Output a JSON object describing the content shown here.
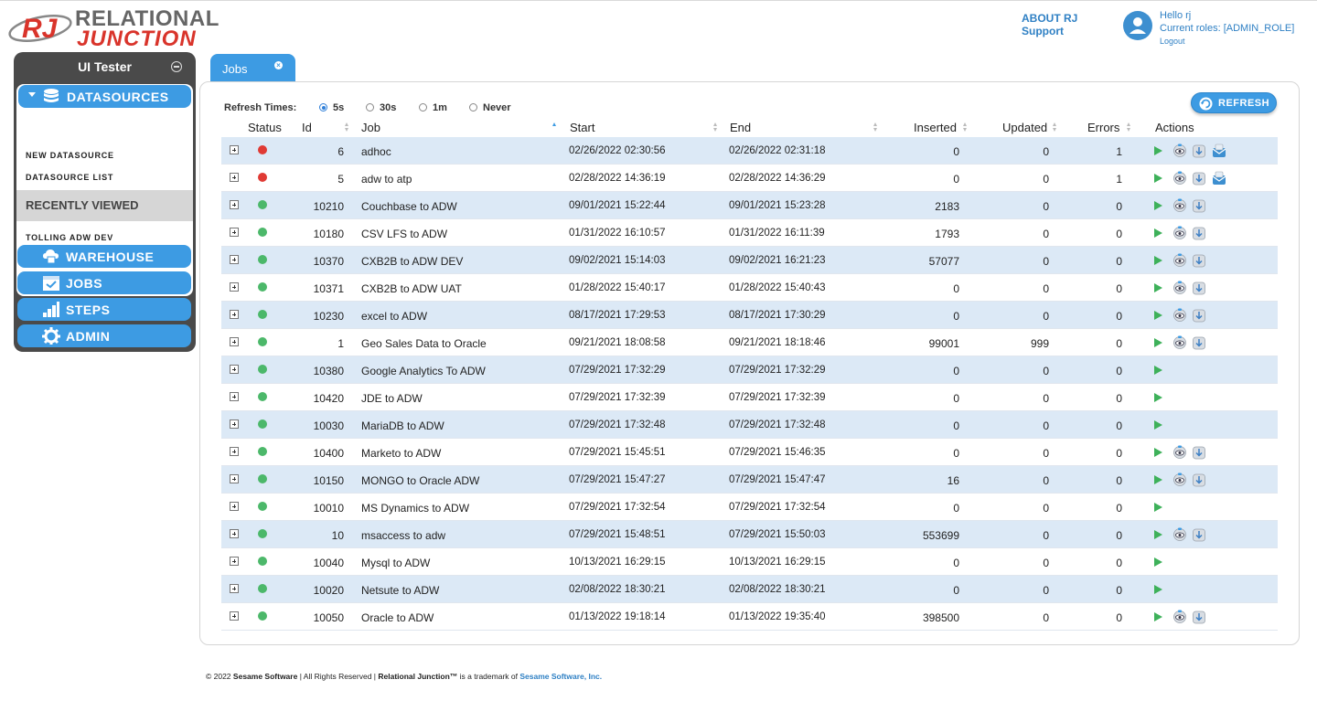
{
  "header": {
    "logo_top": "RELATIONAL",
    "logo_bottom": "JUNCTION",
    "logo_mark": "RJ",
    "about": "ABOUT RJ",
    "support": "Support",
    "greeting": "Hello rj",
    "roles": "Current roles: [ADMIN_ROLE]",
    "logout": "Logout"
  },
  "sidebar": {
    "title": "UI Tester",
    "section": "DATASOURCES",
    "links": [
      "NEW DATASOURCE",
      "DATASOURCE LIST"
    ],
    "recently_viewed": "RECENTLY VIEWED",
    "recent_item": "TOLLING ADW DEV",
    "nav": [
      "WAREHOUSE",
      "JOBS",
      "STEPS",
      "ADMIN"
    ]
  },
  "tab": {
    "label": "Jobs"
  },
  "toolbar": {
    "refresh_times_label": "Refresh Times:",
    "options": [
      "5s",
      "30s",
      "1m",
      "Never"
    ],
    "selected": "5s",
    "refresh_button": "REFRESH"
  },
  "table": {
    "columns": [
      "Status",
      "Id",
      "Job",
      "Start",
      "End",
      "Inserted",
      "Updated",
      "Errors",
      "Actions"
    ],
    "rows": [
      {
        "status": "error",
        "id": "6",
        "job": "adhoc",
        "start": "02/26/2022 02:30:56",
        "end": "02/26/2022 02:31:18",
        "inserted": "0",
        "updated": "0",
        "errors": "1",
        "actions": [
          "play",
          "view",
          "download",
          "email"
        ]
      },
      {
        "status": "error",
        "id": "5",
        "job": "adw to atp",
        "start": "02/28/2022 14:36:19",
        "end": "02/28/2022 14:36:29",
        "inserted": "0",
        "updated": "0",
        "errors": "1",
        "actions": [
          "play",
          "view",
          "download",
          "email"
        ]
      },
      {
        "status": "ok",
        "id": "10210",
        "job": "Couchbase to ADW",
        "start": "09/01/2021 15:22:44",
        "end": "09/01/2021 15:23:28",
        "inserted": "2183",
        "updated": "0",
        "errors": "0",
        "actions": [
          "play",
          "view",
          "download"
        ]
      },
      {
        "status": "ok",
        "id": "10180",
        "job": "CSV LFS to ADW",
        "start": "01/31/2022 16:10:57",
        "end": "01/31/2022 16:11:39",
        "inserted": "1793",
        "updated": "0",
        "errors": "0",
        "actions": [
          "play",
          "view",
          "download"
        ]
      },
      {
        "status": "ok",
        "id": "10370",
        "job": "CXB2B to ADW DEV",
        "start": "09/02/2021 15:14:03",
        "end": "09/02/2021 16:21:23",
        "inserted": "57077",
        "updated": "0",
        "errors": "0",
        "actions": [
          "play",
          "view",
          "download"
        ]
      },
      {
        "status": "ok",
        "id": "10371",
        "job": "CXB2B to ADW UAT",
        "start": "01/28/2022 15:40:17",
        "end": "01/28/2022 15:40:43",
        "inserted": "0",
        "updated": "0",
        "errors": "0",
        "actions": [
          "play",
          "view",
          "download"
        ]
      },
      {
        "status": "ok",
        "id": "10230",
        "job": "excel to ADW",
        "start": "08/17/2021 17:29:53",
        "end": "08/17/2021 17:30:29",
        "inserted": "0",
        "updated": "0",
        "errors": "0",
        "actions": [
          "play",
          "view",
          "download"
        ]
      },
      {
        "status": "ok",
        "id": "1",
        "job": "Geo Sales Data to Oracle",
        "start": "09/21/2021 18:08:58",
        "end": "09/21/2021 18:18:46",
        "inserted": "99001",
        "updated": "999",
        "errors": "0",
        "actions": [
          "play",
          "view",
          "download"
        ]
      },
      {
        "status": "ok",
        "id": "10380",
        "job": "Google Analytics To ADW",
        "start": "07/29/2021 17:32:29",
        "end": "07/29/2021 17:32:29",
        "inserted": "0",
        "updated": "0",
        "errors": "0",
        "actions": [
          "play"
        ]
      },
      {
        "status": "ok",
        "id": "10420",
        "job": "JDE to ADW",
        "start": "07/29/2021 17:32:39",
        "end": "07/29/2021 17:32:39",
        "inserted": "0",
        "updated": "0",
        "errors": "0",
        "actions": [
          "play"
        ]
      },
      {
        "status": "ok",
        "id": "10030",
        "job": "MariaDB to ADW",
        "start": "07/29/2021 17:32:48",
        "end": "07/29/2021 17:32:48",
        "inserted": "0",
        "updated": "0",
        "errors": "0",
        "actions": [
          "play"
        ]
      },
      {
        "status": "ok",
        "id": "10400",
        "job": "Marketo to ADW",
        "start": "07/29/2021 15:45:51",
        "end": "07/29/2021 15:46:35",
        "inserted": "0",
        "updated": "0",
        "errors": "0",
        "actions": [
          "play",
          "view",
          "download"
        ]
      },
      {
        "status": "ok",
        "id": "10150",
        "job": "MONGO to Oracle ADW",
        "start": "07/29/2021 15:47:27",
        "end": "07/29/2021 15:47:47",
        "inserted": "16",
        "updated": "0",
        "errors": "0",
        "actions": [
          "play",
          "view",
          "download"
        ]
      },
      {
        "status": "ok",
        "id": "10010",
        "job": "MS Dynamics to ADW",
        "start": "07/29/2021 17:32:54",
        "end": "07/29/2021 17:32:54",
        "inserted": "0",
        "updated": "0",
        "errors": "0",
        "actions": [
          "play"
        ]
      },
      {
        "status": "ok",
        "id": "10",
        "job": "msaccess to adw",
        "start": "07/29/2021 15:48:51",
        "end": "07/29/2021 15:50:03",
        "inserted": "553699",
        "updated": "0",
        "errors": "0",
        "actions": [
          "play",
          "view",
          "download"
        ]
      },
      {
        "status": "ok",
        "id": "10040",
        "job": "Mysql to ADW",
        "start": "10/13/2021 16:29:15",
        "end": "10/13/2021 16:29:15",
        "inserted": "0",
        "updated": "0",
        "errors": "0",
        "actions": [
          "play"
        ]
      },
      {
        "status": "ok",
        "id": "10020",
        "job": "Netsute to ADW",
        "start": "02/08/2022 18:30:21",
        "end": "02/08/2022 18:30:21",
        "inserted": "0",
        "updated": "0",
        "errors": "0",
        "actions": [
          "play"
        ]
      },
      {
        "status": "ok",
        "id": "10050",
        "job": "Oracle to ADW",
        "start": "01/13/2022 19:18:14",
        "end": "01/13/2022 19:35:40",
        "inserted": "398500",
        "updated": "0",
        "errors": "0",
        "actions": [
          "play",
          "view",
          "download"
        ]
      }
    ]
  },
  "footer": {
    "copyright": "© 2022",
    "company": "Sesame Software",
    "rights": "| All Rights Reserved |",
    "product": "Relational Junction™",
    "trademark": "is a trademark of",
    "link": "Sesame Software, Inc."
  },
  "colors": {
    "accent": "#3d9be3",
    "status_ok": "#4cb86a",
    "status_error": "#e03a34",
    "row_alt": "#dce9f6"
  }
}
